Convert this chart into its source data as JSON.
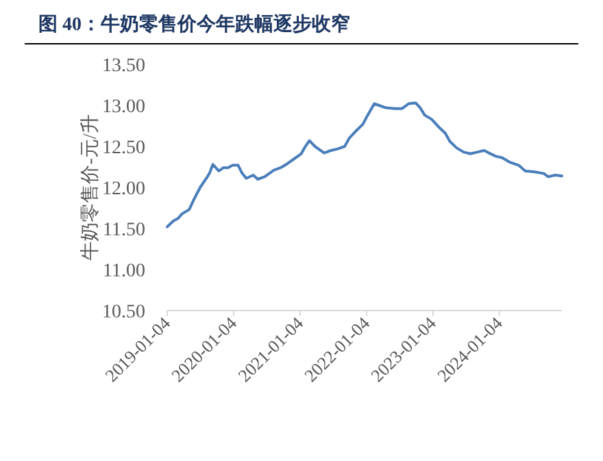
{
  "chart_data": {
    "type": "line",
    "title": "图 40：牛奶零售价今年跌幅逐步收窄",
    "ylabel": "牛奶零售价-元/升",
    "x": [
      "2019-01-04",
      "2019-02-06",
      "2019-03-03",
      "2019-03-28",
      "2019-05-05",
      "2019-05-30",
      "2019-07-07",
      "2019-08-13",
      "2019-08-26",
      "2019-09-12",
      "2019-10-15",
      "2019-11-09",
      "2019-12-04",
      "2019-12-30",
      "2020-01-29",
      "2020-02-18",
      "2020-03-14",
      "2020-04-21",
      "2020-05-16",
      "2020-06-23",
      "2020-08-12",
      "2020-09-19",
      "2020-10-26",
      "2020-12-03",
      "2021-01-10",
      "2021-01-30",
      "2021-02-24",
      "2021-03-26",
      "2021-05-16",
      "2021-06-22",
      "2021-07-30",
      "2021-09-06",
      "2021-10-01",
      "2021-11-08",
      "2021-12-15",
      "2022-01-10",
      "2022-02-16",
      "2022-03-13",
      "2022-04-20",
      "2022-06-09",
      "2022-07-17",
      "2022-08-24",
      "2022-10-01",
      "2022-10-26",
      "2022-11-20",
      "2022-12-28",
      "2023-02-03",
      "2023-03-13",
      "2023-04-07",
      "2023-05-15",
      "2023-06-22",
      "2023-07-29",
      "2023-09-05",
      "2023-10-13",
      "2023-11-07",
      "2023-12-15",
      "2024-01-21",
      "2024-02-28",
      "2024-04-19",
      "2024-05-26",
      "2024-07-16",
      "2024-09-04",
      "2024-09-29",
      "2024-11-06",
      "2024-12-13"
    ],
    "series": [
      {
        "color": "#4a7ebb",
        "values": [
          11.52,
          11.59,
          11.62,
          11.68,
          11.73,
          11.85,
          12.01,
          12.13,
          12.18,
          12.28,
          12.2,
          12.24,
          12.24,
          12.27,
          12.27,
          12.18,
          12.11,
          12.15,
          12.1,
          12.13,
          12.21,
          12.24,
          12.29,
          12.35,
          12.41,
          12.49,
          12.57,
          12.5,
          12.42,
          12.45,
          12.47,
          12.5,
          12.6,
          12.69,
          12.77,
          12.88,
          13.02,
          13.0,
          12.97,
          12.96,
          12.96,
          13.02,
          13.03,
          12.97,
          12.88,
          12.83,
          12.74,
          12.66,
          12.56,
          12.48,
          12.43,
          12.41,
          12.43,
          12.45,
          12.42,
          12.38,
          12.36,
          12.31,
          12.27,
          12.2,
          12.19,
          12.17,
          12.13,
          12.15,
          12.14
        ]
      }
    ],
    "xlim": [
      "2019-01-04",
      "2024-12-13"
    ],
    "xticks": [
      "2019-01-04",
      "2020-01-04",
      "2021-01-04",
      "2022-01-04",
      "2023-01-04",
      "2024-01-04"
    ],
    "ylim": [
      10.5,
      13.5
    ],
    "yticks": [
      {
        "value": 10.5,
        "label": "10.50"
      },
      {
        "value": 11,
        "label": "11.00"
      },
      {
        "value": 11.5,
        "label": "11.50"
      },
      {
        "value": 12,
        "label": "12.00"
      },
      {
        "value": 12.5,
        "label": "12.50"
      },
      {
        "value": 13,
        "label": "13.00"
      },
      {
        "value": 13.5,
        "label": "13.50"
      }
    ],
    "marker": "none",
    "line_style": "solid"
  }
}
